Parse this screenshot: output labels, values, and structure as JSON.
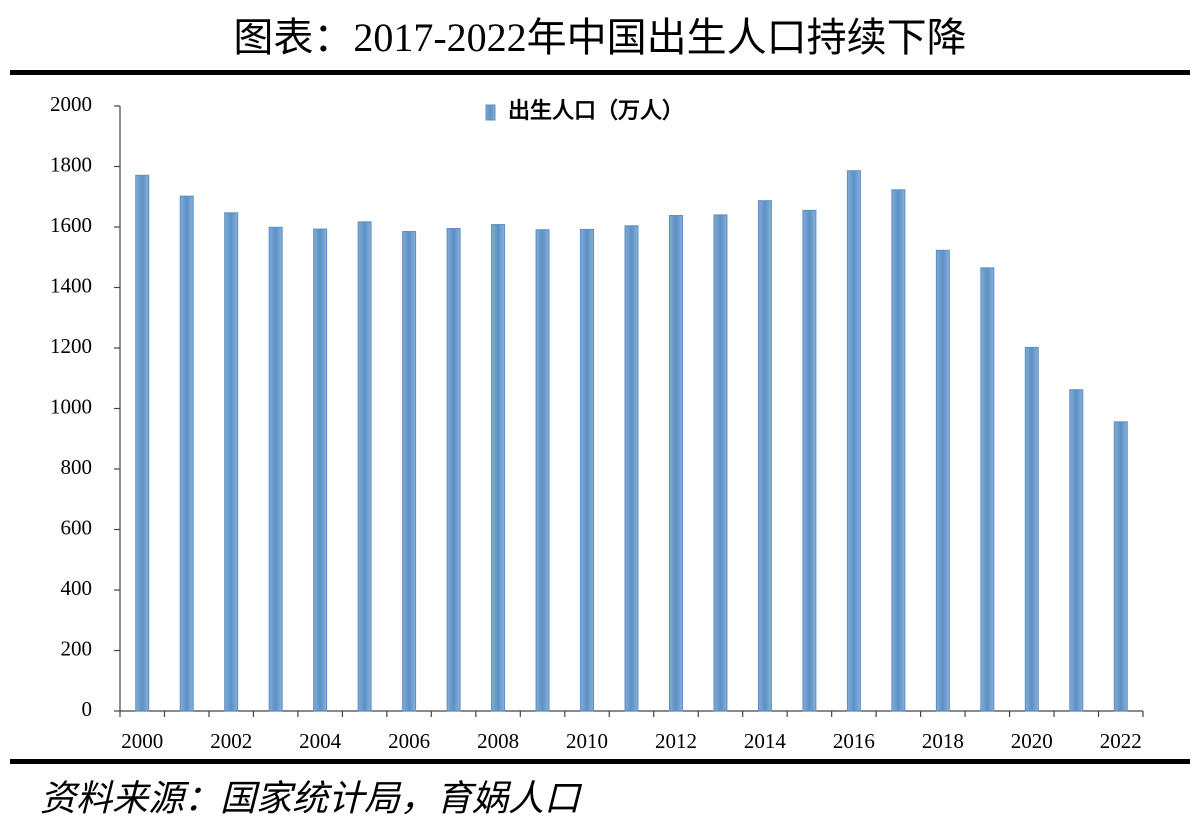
{
  "chart_data": {
    "type": "bar",
    "title": "图表：2017-2022年中国出生人口持续下降",
    "source": "资料来源：国家统计局，育娲人口",
    "categories": [
      "2000",
      null,
      "2002",
      null,
      "2004",
      null,
      "2006",
      null,
      "2008",
      null,
      "2010",
      null,
      "2012",
      null,
      "2014",
      null,
      "2016",
      null,
      "2018",
      null,
      "2020",
      null,
      "2022"
    ],
    "series": [
      {
        "name": "出生人口（万人）",
        "color": "#5b90c6",
        "values": [
          1771,
          1702,
          1647,
          1599,
          1593,
          1617,
          1585,
          1595,
          1608,
          1591,
          1592,
          1604,
          1638,
          1640,
          1687,
          1655,
          1786,
          1723,
          1523,
          1465,
          1202,
          1062,
          956
        ]
      }
    ],
    "ylim": [
      0,
      2000
    ],
    "yticks": [
      0,
      200,
      400,
      600,
      800,
      1000,
      1200,
      1400,
      1600,
      1800,
      2000
    ],
    "grid": false,
    "legend": "top"
  }
}
